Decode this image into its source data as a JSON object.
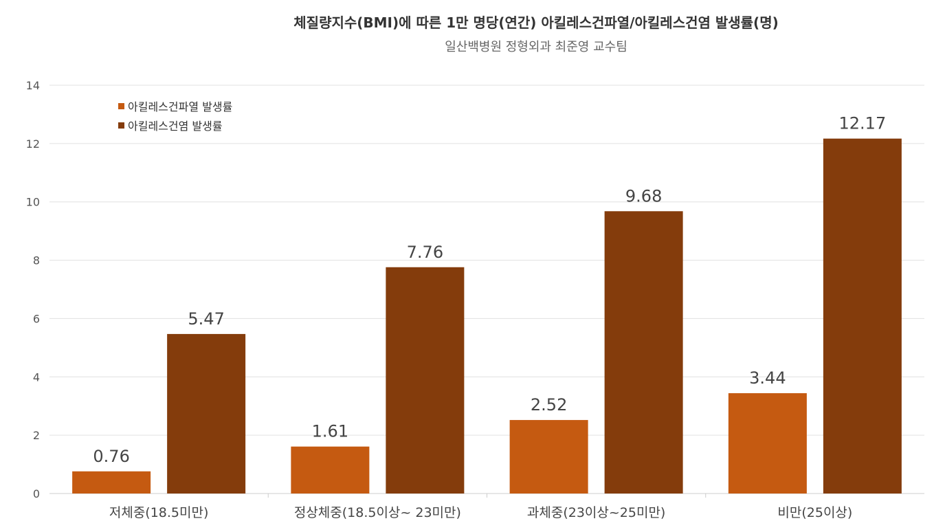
{
  "title": "체질량지수(BMI)에 따른 1만 명당(연간) 아킬레스건파열/아킬레스건염 발생률(명)",
  "subtitle": "일산백병원 정형외과 최준영 교수팀",
  "colors": {
    "rupture": "#c55a11",
    "tendinitis": "#843c0c",
    "grid": "#e0e0e0"
  },
  "chart_data": {
    "type": "bar",
    "categories": [
      "저체중(18.5미만)",
      "정상체중(18.5이상~ 23미만)",
      "과체중(23이상~25미만)",
      "비만(25이상)"
    ],
    "series": [
      {
        "name": "아킬레스건파열 발생률",
        "values": [
          0.76,
          1.61,
          2.52,
          3.44
        ],
        "labels": [
          "0.76",
          "1.61",
          "2.52",
          "3.44"
        ]
      },
      {
        "name": "아킬레스건염 발생률",
        "values": [
          5.47,
          7.76,
          9.68,
          12.17
        ],
        "labels": [
          "5.47",
          "7.76",
          "9.68",
          "12.17"
        ]
      }
    ],
    "ylim": [
      0,
      14
    ],
    "yticks": [
      0,
      2,
      4,
      6,
      8,
      10,
      12,
      14
    ],
    "grid": true,
    "legend_position": "top-left"
  }
}
